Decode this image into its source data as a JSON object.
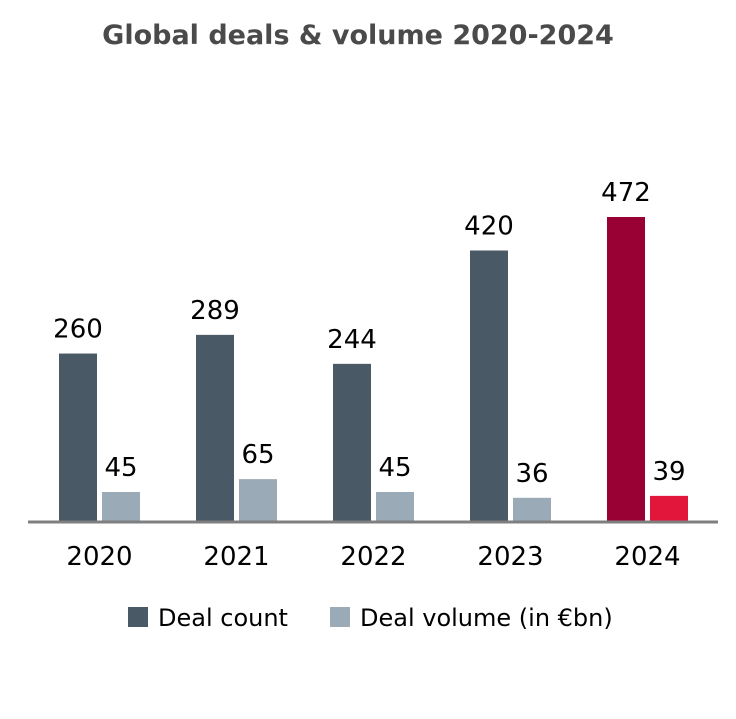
{
  "chart_data": {
    "type": "bar",
    "title": "Global deals & volume 2020-2024",
    "categories": [
      "2020",
      "2021",
      "2022",
      "2023",
      "2024"
    ],
    "series": [
      {
        "name": "Deal count",
        "values": [
          260,
          289,
          244,
          420,
          472
        ],
        "color": "#4a5966",
        "highlight_color": "#990033"
      },
      {
        "name": "Deal volume (in €bn)",
        "values": [
          45,
          65,
          45,
          36,
          39
        ],
        "color": "#9aaab7",
        "highlight_color": "#e2163a"
      }
    ],
    "highlight_category": "2024",
    "ylim": [
      0,
      472
    ],
    "grid": false,
    "legend_position": "bottom",
    "data_labels": true
  },
  "colors": {
    "title": "#4a4a4a",
    "axis": "#7f7f7f",
    "text": "#000000",
    "background": "#ffffff"
  }
}
